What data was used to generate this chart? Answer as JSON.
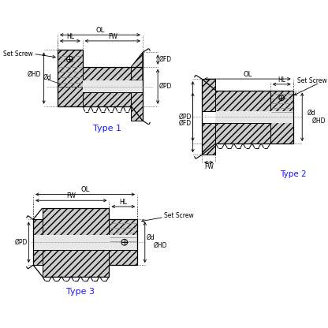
{
  "bg_color": "#ffffff",
  "line_color": "#000000",
  "blue_color": "#1a1aff",
  "type1_label": "Type 1",
  "type2_label": "Type 2",
  "type3_label": "Type 3",
  "OL": "OL",
  "HL": "HL",
  "FW": "FW",
  "OFD": "ØFD",
  "OPD": "ØPD",
  "OHD": "ØHD",
  "Od": "Ød",
  "SetScrew": "Set Screw"
}
